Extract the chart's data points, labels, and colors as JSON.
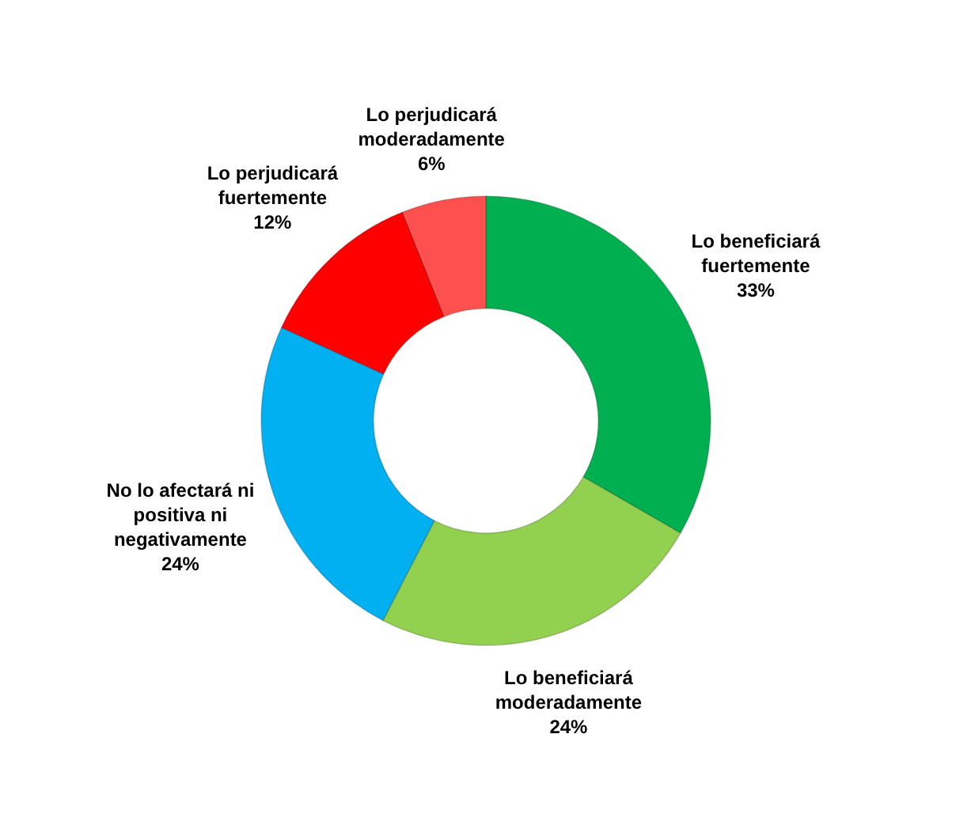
{
  "chart_data": {
    "type": "donut",
    "categories": [
      "Lo beneficiará fuertemente",
      "Lo beneficiará moderadamente",
      "No lo afectará ni positiva ni negativamente",
      "Lo perjudicará fuertemente",
      "Lo perjudicará moderadamente"
    ],
    "values": [
      33,
      24,
      24,
      12,
      6
    ],
    "value_labels": [
      "33%",
      "24%",
      "24%",
      "12%",
      "6%"
    ],
    "colors": [
      "#00b050",
      "#92d050",
      "#00b0f0",
      "#ff0000",
      "#ff5050"
    ]
  }
}
